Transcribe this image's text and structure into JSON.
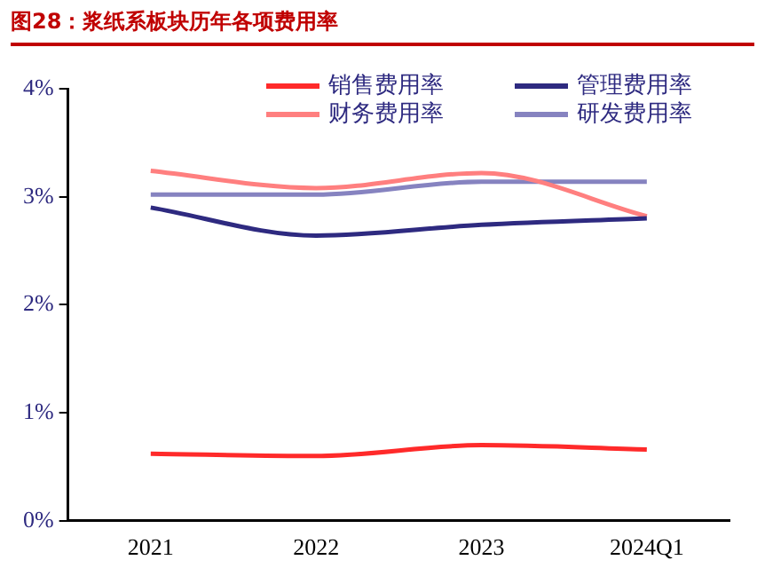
{
  "chart_data": {
    "type": "line",
    "title": "图28：浆纸系板块历年各项费用率",
    "categories": [
      "2021",
      "2022",
      "2023",
      "2024Q1"
    ],
    "series": [
      {
        "name": "销售费用率",
        "color": "#ff2a2a",
        "values": [
          0.62,
          0.6,
          0.7,
          0.66
        ]
      },
      {
        "name": "管理费用率",
        "color": "#2e2a80",
        "values": [
          2.9,
          2.64,
          2.74,
          2.8
        ]
      },
      {
        "name": "财务费用率",
        "color": "#ff7f7f",
        "values": [
          3.24,
          3.08,
          3.22,
          2.82
        ]
      },
      {
        "name": "研发费用率",
        "color": "#8683c0",
        "values": [
          3.02,
          3.02,
          3.14,
          3.14
        ]
      }
    ],
    "ylim": [
      0,
      4
    ],
    "yticks": [
      {
        "value": 0,
        "label": "0%"
      },
      {
        "value": 1,
        "label": "1%"
      },
      {
        "value": 2,
        "label": "2%"
      },
      {
        "value": 3,
        "label": "3%"
      },
      {
        "value": 4,
        "label": "4%"
      }
    ],
    "grid": false,
    "legend": "top",
    "marker": "none",
    "line_style": "solid"
  }
}
